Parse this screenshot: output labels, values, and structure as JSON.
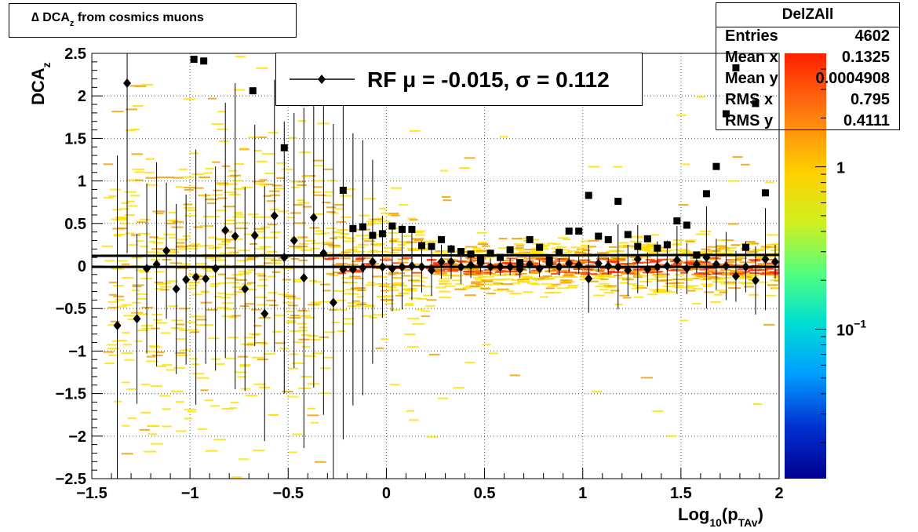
{
  "title": {
    "prefix": "∆ DCA",
    "sub": "z",
    "suffix": " from cosmics muons"
  },
  "legend": {
    "label": "RF μ = -0.015, σ =   0.112"
  },
  "stats": {
    "name": "DelZAll",
    "rows": [
      {
        "key": "Entries",
        "value": "4602"
      },
      {
        "key": "Mean x",
        "value": "0.1325"
      },
      {
        "key": "Mean y",
        "value": "0.0004908"
      },
      {
        "key": "RMS x",
        "value": "0.795"
      },
      {
        "key": "RMS y",
        "value": "0.4111"
      }
    ]
  },
  "colors": {
    "marker": "#000000",
    "heat_low": "#ffe000",
    "heat_high": "#ff3000",
    "heat_mid": "#f0a000"
  },
  "chart_data": {
    "type": "scatter",
    "xlabel": {
      "main": "Log",
      "sub1": "10",
      "mid": "(p",
      "sub2": "TAv",
      "end": ")"
    },
    "ylabel": {
      "main": "DCA",
      "sub": "z"
    },
    "xlim": [
      -1.5,
      2
    ],
    "ylim": [
      -2.5,
      2.5
    ],
    "x_ticks": [
      -1.5,
      -1,
      -0.5,
      0,
      0.5,
      1,
      1.5,
      2
    ],
    "x_tick_labels": [
      "−1.5",
      "−1",
      "−0.5",
      "0",
      "0.5",
      "1",
      "1.5",
      "2"
    ],
    "y_ticks": [
      -2.5,
      -2,
      -1.5,
      -1,
      -0.5,
      0,
      0.5,
      1,
      1.5,
      2,
      2.5
    ],
    "y_tick_labels": [
      "−2.5",
      "−2",
      "−1.5",
      "−1",
      "−0.5",
      "0",
      "0.5",
      "1",
      "1.5",
      "2",
      "2.5"
    ],
    "grid": true,
    "colorbar": {
      "scale": "log",
      "labels": [
        {
          "text": "1",
          "value": 1
        },
        {
          "text": "10",
          "sup": "−1",
          "value": 0.1
        }
      ]
    },
    "fit_lines": [
      {
        "y_start": 0.12,
        "y_end": 0.13
      },
      {
        "y_start": -0.01,
        "y_end": -0.01
      }
    ],
    "series": [
      {
        "name": "RF",
        "marker": "diamond",
        "points": [
          [
            -1.37,
            -0.7,
            2.0
          ],
          [
            -1.32,
            2.15,
            2.0
          ],
          [
            -1.27,
            -0.62,
            1.0
          ],
          [
            -1.22,
            -0.03,
            1.0
          ],
          [
            -1.17,
            0.02,
            1.2
          ],
          [
            -1.12,
            0.18,
            0.8
          ],
          [
            -1.07,
            -0.27,
            1.0
          ],
          [
            -1.02,
            -0.16,
            1.0
          ],
          [
            -0.97,
            -0.13,
            1.5
          ],
          [
            -0.92,
            -0.15,
            1.0
          ],
          [
            -0.87,
            -0.03,
            1.2
          ],
          [
            -0.82,
            0.42,
            1.5
          ],
          [
            -0.77,
            0.35,
            1.8
          ],
          [
            -0.72,
            -0.27,
            1.2
          ],
          [
            -0.67,
            0.36,
            1.3
          ],
          [
            -0.62,
            -0.56,
            1.5
          ],
          [
            -0.57,
            0.59,
            1.6
          ],
          [
            -0.52,
            0.1,
            1.6
          ],
          [
            -0.47,
            0.3,
            1.5
          ],
          [
            -0.42,
            -0.14,
            2.0
          ],
          [
            -0.37,
            0.57,
            2.0
          ],
          [
            -0.32,
            0.15,
            1.9
          ],
          [
            -0.27,
            -0.43,
            2.1
          ],
          [
            -0.22,
            -0.04,
            2.0
          ],
          [
            -0.17,
            -0.04,
            1.6
          ],
          [
            -0.12,
            -0.02,
            1.5
          ],
          [
            -0.07,
            0.05,
            1.2
          ],
          [
            -0.02,
            -0.01,
            0.6
          ],
          [
            0.03,
            -0.03,
            0.5
          ],
          [
            0.08,
            -0.01,
            0.5
          ],
          [
            0.13,
            0.0,
            0.4
          ],
          [
            0.18,
            -0.01,
            0.3
          ],
          [
            0.23,
            -0.05,
            0.3
          ],
          [
            0.28,
            0.05,
            0.2
          ],
          [
            0.33,
            0.05,
            0.2
          ],
          [
            0.38,
            -0.01,
            0.2
          ],
          [
            0.43,
            0.01,
            0.15
          ],
          [
            0.48,
            0.03,
            0.1
          ],
          [
            0.53,
            -0.01,
            0.1
          ],
          [
            0.58,
            -0.01,
            0.1
          ],
          [
            0.63,
            -0.01,
            0.1
          ],
          [
            0.68,
            -0.04,
            0.1
          ],
          [
            0.73,
            0.02,
            0.1
          ],
          [
            0.78,
            -0.03,
            0.1
          ],
          [
            0.83,
            0.02,
            0.1
          ],
          [
            0.88,
            -0.01,
            0.1
          ],
          [
            0.93,
            0.03,
            0.1
          ],
          [
            0.98,
            0.01,
            0.1
          ],
          [
            1.03,
            -0.15,
            0.4
          ],
          [
            1.08,
            0.03,
            0.1
          ],
          [
            1.13,
            0.0,
            0.1
          ],
          [
            1.18,
            -0.01,
            0.5
          ],
          [
            1.23,
            -0.05,
            0.3
          ],
          [
            1.28,
            0.08,
            0.4
          ],
          [
            1.33,
            -0.04,
            0.2
          ],
          [
            1.38,
            -0.01,
            0.3
          ],
          [
            1.43,
            0.0,
            0.3
          ],
          [
            1.48,
            0.07,
            0.4
          ],
          [
            1.53,
            -0.03,
            0.3
          ],
          [
            1.58,
            0.02,
            0.1
          ],
          [
            1.63,
            0.1,
            0.6
          ],
          [
            1.68,
            0.02,
            0.3
          ],
          [
            1.73,
            0.0,
            0.4
          ],
          [
            1.78,
            -0.12,
            0.3
          ],
          [
            1.83,
            -0.01,
            0.3
          ],
          [
            1.88,
            -0.17,
            0.4
          ],
          [
            1.93,
            0.08,
            0.6
          ],
          [
            1.98,
            0.05,
            0.2
          ]
        ]
      },
      {
        "name": "",
        "marker": "square",
        "points": [
          [
            -0.98,
            2.43,
            0.0
          ],
          [
            -0.93,
            2.41,
            0.0
          ],
          [
            -0.68,
            2.06,
            0.0
          ],
          [
            -0.52,
            1.39,
            0.0
          ],
          [
            -0.22,
            0.89,
            0.0
          ],
          [
            -0.17,
            0.44,
            0.0
          ],
          [
            -0.12,
            0.46,
            0.0
          ],
          [
            -0.07,
            0.36,
            0.0
          ],
          [
            -0.02,
            0.38,
            0.0
          ],
          [
            0.03,
            0.47,
            0.0
          ],
          [
            0.08,
            0.43,
            0.0
          ],
          [
            0.13,
            0.43,
            0.0
          ],
          [
            0.18,
            0.24,
            0.0
          ],
          [
            0.23,
            0.23,
            0.0
          ],
          [
            0.28,
            0.31,
            0.0
          ],
          [
            0.33,
            0.2,
            0.0
          ],
          [
            0.38,
            0.17,
            0.0
          ],
          [
            0.43,
            0.14,
            0.0
          ],
          [
            0.48,
            0.08,
            0.0
          ],
          [
            0.53,
            0.15,
            0.0
          ],
          [
            0.58,
            0.1,
            0.0
          ],
          [
            0.63,
            0.19,
            0.0
          ],
          [
            0.68,
            0.04,
            0.0
          ],
          [
            0.73,
            0.31,
            0.0
          ],
          [
            0.78,
            0.22,
            0.0
          ],
          [
            0.83,
            0.07,
            0.0
          ],
          [
            0.88,
            0.16,
            0.0
          ],
          [
            0.93,
            0.41,
            0.0
          ],
          [
            0.98,
            0.41,
            0.0
          ],
          [
            1.03,
            0.83,
            0.0
          ],
          [
            1.08,
            0.35,
            0.0
          ],
          [
            1.13,
            0.31,
            0.0
          ],
          [
            1.18,
            0.76,
            0.0
          ],
          [
            1.23,
            0.37,
            0.0
          ],
          [
            1.28,
            0.23,
            0.0
          ],
          [
            1.33,
            0.32,
            0.0
          ],
          [
            1.38,
            0.21,
            0.0
          ],
          [
            1.43,
            0.25,
            0.0
          ],
          [
            1.48,
            0.53,
            0.0
          ],
          [
            1.53,
            0.48,
            0.0
          ],
          [
            1.58,
            0.13,
            0.0
          ],
          [
            1.63,
            0.85,
            0.0
          ],
          [
            1.68,
            1.17,
            0.0
          ],
          [
            1.73,
            1.79,
            0.0
          ],
          [
            1.78,
            2.33,
            0.0
          ],
          [
            1.83,
            0.22,
            0.0
          ],
          [
            1.88,
            1.91,
            0.0
          ],
          [
            1.93,
            0.86,
            0.0
          ]
        ]
      }
    ]
  }
}
